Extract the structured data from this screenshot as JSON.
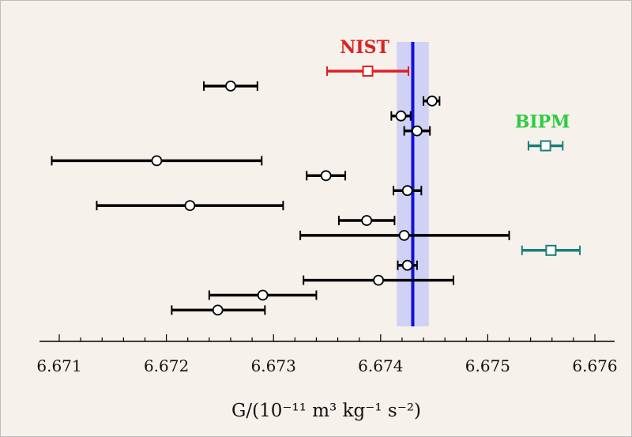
{
  "chart_data": {
    "type": "scatter",
    "title": "",
    "xlabel": "G/(10⁻¹¹ m³ kg⁻¹ s⁻²)",
    "ylabel": "",
    "xlim": [
      6.6708,
      6.6762
    ],
    "xticks": [
      "6.671",
      "6.672",
      "6.673",
      "6.674",
      "6.675",
      "6.676"
    ],
    "grid": false,
    "colors": {
      "background": "#f7f1ec",
      "default": "#000000",
      "nist": "#e02020",
      "bipm": "#1a7f7a",
      "bipm_label": "#2ecc40",
      "recommended": "#1010dd",
      "band": "#c9ccf7"
    },
    "recommended_value": {
      "value": 6.6743,
      "band": [
        6.67415,
        6.67445
      ]
    },
    "measurements": [
      {
        "value": 6.67388,
        "low": 6.6735,
        "high": 6.67426,
        "group": "nist",
        "marker": "square"
      },
      {
        "value": 6.6726,
        "low": 6.67235,
        "high": 6.67285,
        "group": "default",
        "marker": "circle"
      },
      {
        "value": 6.67448,
        "low": 6.6744,
        "high": 6.67455,
        "group": "default",
        "marker": "circle"
      },
      {
        "value": 6.67419,
        "low": 6.6741,
        "high": 6.67428,
        "group": "default",
        "marker": "circle"
      },
      {
        "value": 6.67434,
        "low": 6.67422,
        "high": 6.67446,
        "group": "default",
        "marker": "circle"
      },
      {
        "value": 6.67554,
        "low": 6.67538,
        "high": 6.6757,
        "group": "bipm",
        "marker": "square"
      },
      {
        "value": 6.67191,
        "low": 6.67093,
        "high": 6.67289,
        "group": "default",
        "marker": "circle"
      },
      {
        "value": 6.67349,
        "low": 6.67331,
        "high": 6.67367,
        "group": "default",
        "marker": "circle"
      },
      {
        "value": 6.67425,
        "low": 6.67412,
        "high": 6.67438,
        "group": "default",
        "marker": "circle"
      },
      {
        "value": 6.67222,
        "low": 6.67135,
        "high": 6.67309,
        "group": "default",
        "marker": "circle"
      },
      {
        "value": 6.67387,
        "low": 6.67361,
        "high": 6.67413,
        "group": "default",
        "marker": "circle"
      },
      {
        "value": 6.67422,
        "low": 6.67325,
        "high": 6.6752,
        "group": "default",
        "marker": "circle"
      },
      {
        "value": 6.67559,
        "low": 6.67532,
        "high": 6.67586,
        "group": "bipm",
        "marker": "square"
      },
      {
        "value": 6.67425,
        "low": 6.67416,
        "high": 6.67434,
        "group": "default",
        "marker": "circle"
      },
      {
        "value": 6.67398,
        "low": 6.67328,
        "high": 6.67468,
        "group": "default",
        "marker": "circle"
      },
      {
        "value": 6.6729,
        "low": 6.6724,
        "high": 6.6734,
        "group": "default",
        "marker": "circle"
      },
      {
        "value": 6.67248,
        "low": 6.67205,
        "high": 6.67292,
        "group": "default",
        "marker": "circle"
      }
    ],
    "annotations": [
      {
        "text": "NIST",
        "group": "nist"
      },
      {
        "text": "BIPM",
        "group": "bipm"
      }
    ]
  }
}
